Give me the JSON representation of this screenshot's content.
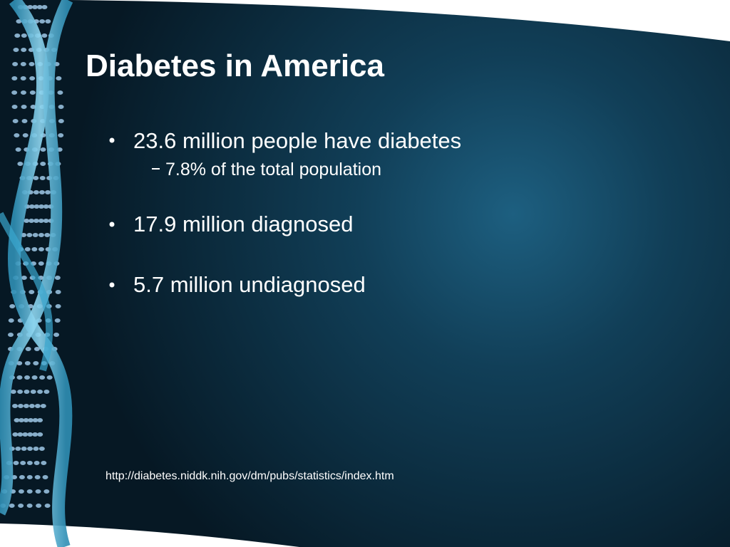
{
  "slide": {
    "title": "Diabetes in America",
    "bullets": [
      {
        "text": "23.6 million people have diabetes",
        "sub": [
          "7.8% of the total population"
        ]
      },
      {
        "text": "17.9 million diagnosed"
      },
      {
        "text": "5.7 million undiagnosed"
      }
    ],
    "source": "http://diabetes.niddk.nih.gov/dm/pubs/statistics/index.htm"
  }
}
